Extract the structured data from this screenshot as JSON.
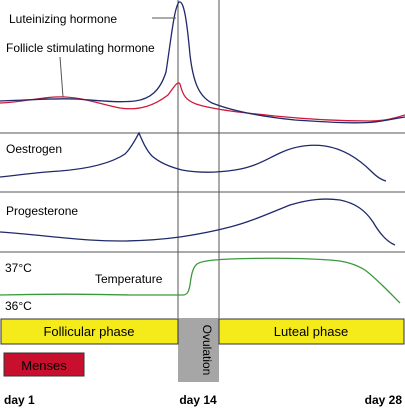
{
  "hormones": {
    "lh_label": "Luteinizing hormone",
    "fsh_label": "Follicle stimulating hormone",
    "lh_color": "#1f2a6b",
    "fsh_color": "#d0193a"
  },
  "oestrogen": {
    "label": "Oestrogen",
    "color": "#1f2a6b"
  },
  "progesterone": {
    "label": "Progesterone",
    "color": "#1f2a6b"
  },
  "temperature": {
    "label": "Temperature",
    "high_label": "37°C",
    "low_label": "36°C",
    "color": "#3a9a3a"
  },
  "phases": {
    "follicular": "Follicular phase",
    "ovulation": "Ovulation",
    "luteal": "Luteal phase",
    "phase_color": "#f5ea1a",
    "ovulation_color": "#a6a6a6"
  },
  "menses": {
    "label": "Menses",
    "color": "#c8102e"
  },
  "days": {
    "start": "day 1",
    "mid": "day 14",
    "end": "day 28"
  }
}
